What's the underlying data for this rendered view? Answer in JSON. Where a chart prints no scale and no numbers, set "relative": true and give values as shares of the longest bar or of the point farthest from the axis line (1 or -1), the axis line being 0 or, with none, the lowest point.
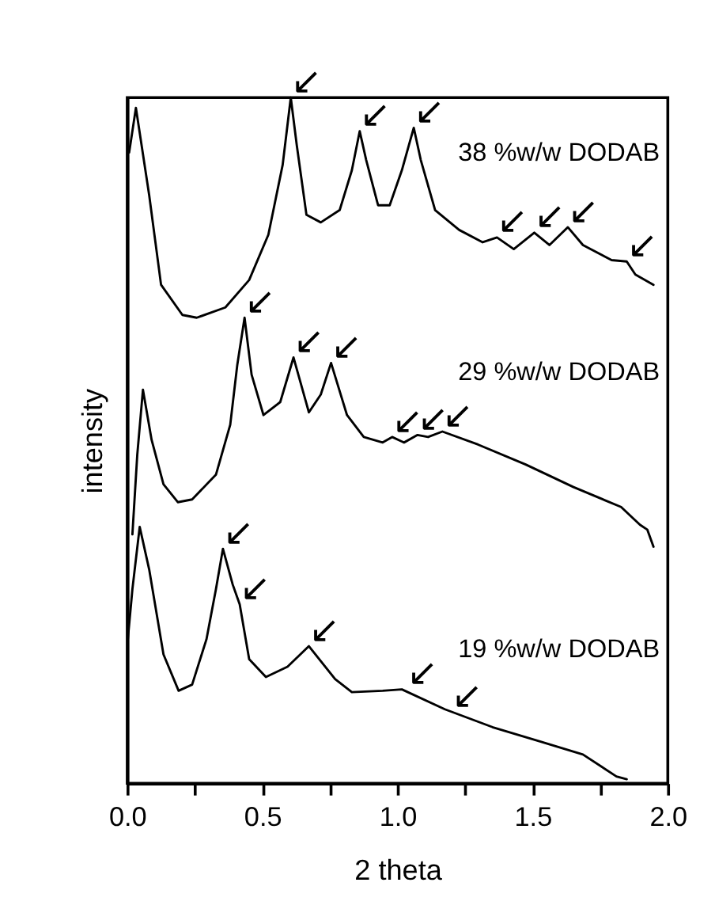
{
  "chart_data": {
    "type": "line",
    "relative": true,
    "xlabel": "2 theta",
    "ylabel": "intensity",
    "legend": false,
    "grid": false,
    "marker": "none",
    "line_style": "solid",
    "xlim": [
      0.0,
      2.0
    ],
    "xticks": [
      {
        "value": 0.0,
        "label": "0.0"
      },
      {
        "value": 0.25,
        "label": null
      },
      {
        "value": 0.5,
        "label": "0.5"
      },
      {
        "value": 0.75,
        "label": null
      },
      {
        "value": 1.0,
        "label": "1.0"
      },
      {
        "value": 1.25,
        "label": null
      },
      {
        "value": 1.5,
        "label": "1.5"
      },
      {
        "value": 1.75,
        "label": null
      },
      {
        "value": 2.0,
        "label": "2.0"
      }
    ],
    "series": [
      {
        "name": "38 %w/w DODAB",
        "color": "#000000",
        "x": [
          0.007,
          0.032,
          0.081,
          0.125,
          0.204,
          0.257,
          0.363,
          0.451,
          0.522,
          0.575,
          0.605,
          0.627,
          0.663,
          0.716,
          0.786,
          0.831,
          0.86,
          0.884,
          0.928,
          0.971,
          1.016,
          1.06,
          1.086,
          1.139,
          1.228,
          1.315,
          1.368,
          1.43,
          1.506,
          1.562,
          1.63,
          1.686,
          1.792,
          1.848,
          1.88,
          1.947
        ],
        "values": [
          0.92,
          0.985,
          0.858,
          0.727,
          0.683,
          0.679,
          0.694,
          0.734,
          0.8,
          0.902,
          1.0,
          0.931,
          0.829,
          0.818,
          0.836,
          0.894,
          0.951,
          0.909,
          0.843,
          0.843,
          0.894,
          0.956,
          0.909,
          0.836,
          0.807,
          0.789,
          0.796,
          0.779,
          0.803,
          0.785,
          0.811,
          0.785,
          0.763,
          0.761,
          0.742,
          0.727
        ]
      },
      {
        "name": "29 %w/w DODAB",
        "color": "#000000",
        "x": [
          0.019,
          0.037,
          0.058,
          0.09,
          0.134,
          0.187,
          0.24,
          0.328,
          0.381,
          0.407,
          0.434,
          0.46,
          0.504,
          0.566,
          0.615,
          0.672,
          0.716,
          0.754,
          0.813,
          0.875,
          0.945,
          0.98,
          1.024,
          1.074,
          1.113,
          1.166,
          1.298,
          1.474,
          1.651,
          1.827,
          1.897,
          1.924,
          1.947
        ],
        "values": [
          0.363,
          0.479,
          0.574,
          0.501,
          0.436,
          0.41,
          0.414,
          0.45,
          0.523,
          0.61,
          0.679,
          0.596,
          0.537,
          0.556,
          0.621,
          0.541,
          0.567,
          0.613,
          0.537,
          0.505,
          0.497,
          0.505,
          0.497,
          0.508,
          0.505,
          0.513,
          0.494,
          0.465,
          0.432,
          0.403,
          0.377,
          0.37,
          0.345
        ]
      },
      {
        "name": "19 %w/w DODAB",
        "color": "#000000",
        "x": [
          0.002,
          0.019,
          0.046,
          0.081,
          0.134,
          0.19,
          0.24,
          0.293,
          0.328,
          0.354,
          0.39,
          0.416,
          0.451,
          0.513,
          0.593,
          0.672,
          0.769,
          0.831,
          0.945,
          1.016,
          1.175,
          1.351,
          1.527,
          1.686,
          1.81,
          1.848
        ],
        "values": [
          0.21,
          0.283,
          0.374,
          0.312,
          0.188,
          0.135,
          0.144,
          0.21,
          0.283,
          0.342,
          0.29,
          0.261,
          0.181,
          0.155,
          0.17,
          0.2,
          0.152,
          0.133,
          0.135,
          0.137,
          0.108,
          0.082,
          0.061,
          0.042,
          0.01,
          0.006
        ]
      }
    ],
    "annotations": [
      {
        "text": "↙",
        "x": 0.605,
        "y": 1.0
      },
      {
        "text": "↙",
        "x": 0.86,
        "y": 0.951
      },
      {
        "text": "↙",
        "x": 1.06,
        "y": 0.956
      },
      {
        "text": "↙",
        "x": 1.368,
        "y": 0.796
      },
      {
        "text": "↙",
        "x": 1.506,
        "y": 0.803
      },
      {
        "text": "↙",
        "x": 1.63,
        "y": 0.811
      },
      {
        "text": "↙",
        "x": 1.848,
        "y": 0.761
      },
      {
        "text": "↙",
        "x": 0.434,
        "y": 0.679
      },
      {
        "text": "↙",
        "x": 0.615,
        "y": 0.621
      },
      {
        "text": "↙",
        "x": 0.754,
        "y": 0.613
      },
      {
        "text": "↙",
        "x": 0.98,
        "y": 0.505
      },
      {
        "text": "↙",
        "x": 1.074,
        "y": 0.508
      },
      {
        "text": "↙",
        "x": 1.166,
        "y": 0.513
      },
      {
        "text": "↙",
        "x": 0.354,
        "y": 0.342
      },
      {
        "text": "↙",
        "x": 0.416,
        "y": 0.261
      },
      {
        "text": "↙",
        "x": 0.672,
        "y": 0.2
      },
      {
        "text": "↙",
        "x": 1.035,
        "y": 0.137
      },
      {
        "text": "↙",
        "x": 1.2,
        "y": 0.104
      }
    ]
  }
}
